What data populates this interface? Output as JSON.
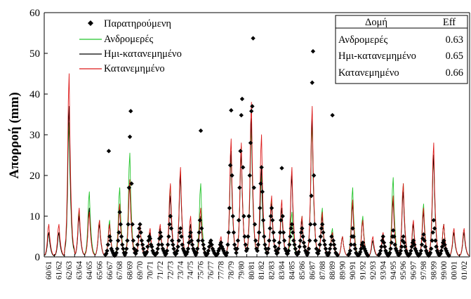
{
  "chart_data": {
    "type": "line",
    "title": "",
    "xlabel": "",
    "ylabel": "Απορροή (mm)",
    "ylim": [
      0,
      60
    ],
    "yticks": [
      0,
      10,
      20,
      30,
      40,
      50,
      60
    ],
    "grid": false,
    "legend_position": "top-left",
    "categories": [
      "60/61",
      "61/62",
      "62/63",
      "63/64",
      "64/65",
      "65/66",
      "66/67",
      "67/68",
      "68/69",
      "69/70",
      "70/71",
      "71/72",
      "72/73",
      "73/74",
      "74/75",
      "75/76",
      "76/77",
      "77/78",
      "78/79",
      "79/80",
      "80/81",
      "81/82",
      "82/83",
      "83/84",
      "84/85",
      "85/86",
      "86/87",
      "87/88",
      "88/89",
      "89/90",
      "90/91",
      "91/92",
      "92/93",
      "93/94",
      "94/95",
      "95/96",
      "96/97",
      "97/98",
      "98/99",
      "99/00",
      "00/01",
      "01/02"
    ],
    "series": [
      {
        "name": "Παρατηρούμενη",
        "marker": "diamond",
        "color": "#000000",
        "points_per_year": 12,
        "values_by_year": {
          "66/67": [
            0.5,
            0.8,
            1.5,
            3,
            26,
            5,
            4,
            2,
            1.5,
            1,
            0.5,
            0.3
          ],
          "67/68": [
            0.5,
            1,
            2,
            4,
            6,
            11,
            8,
            5,
            3,
            2,
            1,
            0.5
          ],
          "68/69": [
            1,
            2,
            4,
            8,
            17,
            29.5,
            35.8,
            18,
            8,
            4,
            2,
            1
          ],
          "69/70": [
            0.8,
            1.5,
            3,
            5,
            7,
            8,
            6,
            4,
            3,
            2,
            1,
            0.5
          ],
          "70/71": [
            0.8,
            1.2,
            2.5,
            4,
            5,
            4.5,
            3,
            2.5,
            1.5,
            1,
            0.7,
            0.5
          ],
          "71/72": [
            0.7,
            1,
            2,
            3,
            4.5,
            6,
            5,
            3,
            2,
            1.5,
            1,
            0.5
          ],
          "72/73": [
            0.8,
            1.5,
            3,
            5,
            8,
            10,
            7,
            4,
            3,
            2,
            1,
            0.6
          ],
          "73/74": [
            0.8,
            1.5,
            2.5,
            4,
            6,
            7,
            5,
            3,
            2,
            1.5,
            1,
            0.5
          ],
          "74/75": [
            0.7,
            1.2,
            2,
            3.5,
            5,
            6,
            4,
            3,
            2,
            1.5,
            1,
            0.5
          ],
          "75/76": [
            1,
            2,
            4,
            6,
            9,
            31,
            7,
            4,
            3,
            2,
            1,
            0.5
          ],
          "76/77": [
            0.5,
            0.8,
            1.5,
            2.5,
            3.5,
            4,
            3,
            2,
            1.5,
            1,
            0.7,
            0.4
          ],
          "77/78": [
            0.5,
            0.8,
            1.5,
            2,
            3,
            3.5,
            2.5,
            2,
            1.5,
            1,
            0.7,
            0.4
          ],
          "78/79": [
            1,
            3,
            6,
            12,
            22.5,
            36,
            20,
            10,
            6,
            3,
            2,
            1
          ],
          "79/80": [
            2,
            4,
            9,
            17,
            26,
            34.8,
            38.8,
            22,
            10,
            5,
            3,
            1.5
          ],
          "80/81": [
            2,
            5,
            10,
            20,
            28,
            35.8,
            37,
            53.7,
            17,
            8,
            4,
            2
          ],
          "81/82": [
            1.5,
            3,
            6,
            12,
            18,
            22,
            16,
            9,
            5,
            3,
            2,
            1
          ],
          "82/83": [
            1,
            2,
            4,
            7,
            10,
            12,
            9,
            6,
            4,
            2.5,
            1.5,
            0.8
          ],
          "83/84": [
            1,
            2,
            3.5,
            6,
            9,
            21.8,
            10,
            6,
            4,
            2,
            1.5,
            0.8
          ],
          "84/85": [
            0.8,
            1.5,
            3,
            5,
            7,
            8,
            6,
            4,
            3,
            2,
            1,
            0.6
          ],
          "85/86": [
            0.7,
            1.2,
            2.5,
            4,
            6,
            7,
            5,
            3.5,
            2.5,
            1.5,
            1,
            0.5
          ],
          "86/87": [
            1,
            2,
            4,
            8,
            15,
            42.8,
            50.5,
            20,
            8,
            4,
            2,
            1
          ],
          "87/88": [
            0.8,
            1.5,
            3,
            5,
            7,
            8,
            6,
            4,
            3,
            2,
            1,
            0.5
          ],
          "88/89": [
            0.5,
            1,
            2,
            3,
            5,
            34.8,
            4,
            3,
            2,
            1,
            0.7,
            0.4
          ],
          "90/91": [
            0.5,
            0.8,
            1.5,
            3,
            5,
            7,
            5,
            3,
            2,
            1,
            0.7,
            0.4
          ],
          "91/92": [
            0.4,
            0.7,
            1.2,
            2,
            3,
            3.5,
            2.5,
            2,
            1.5,
            1,
            0.6,
            0.3
          ],
          "93/94": [
            0.5,
            0.8,
            1.5,
            2.5,
            4,
            5,
            3.5,
            2.5,
            1.5,
            1,
            0.6,
            0.3
          ],
          "94/95": [
            0.6,
            1,
            2,
            3.5,
            5,
            6.5,
            5,
            3,
            2,
            1.5,
            1,
            0.5
          ],
          "95/96": [
            0.5,
            0.8,
            1.5,
            2.5,
            4,
            5,
            3.5,
            2.5,
            1.5,
            1,
            0.6,
            0.3
          ],
          "96/97": [
            0.5,
            0.8,
            1.5,
            2.5,
            3.5,
            4,
            3,
            2,
            1.5,
            1,
            0.6,
            0.3
          ],
          "97/98": [
            0.5,
            0.8,
            1.5,
            3,
            4.5,
            5.5,
            4,
            2.5,
            1.5,
            1,
            0.6,
            0.3
          ],
          "98/99": [
            0.6,
            1,
            2,
            4,
            6,
            9,
            7,
            4,
            2.5,
            1.5,
            1,
            0.5
          ],
          "99/00": [
            0.5,
            0.8,
            1.5,
            2.5,
            3.5,
            4,
            3,
            2,
            1.5,
            1,
            0.6,
            0.3
          ]
        }
      },
      {
        "name": "Ανδρομερές",
        "color": "#22c42a",
        "annual_peaks": [
          6,
          6,
          33,
          11,
          16,
          9,
          9,
          17,
          25.5,
          8,
          6,
          7,
          17.5,
          21,
          8,
          18,
          4,
          4,
          25,
          27,
          32,
          20,
          14,
          12,
          11,
          10,
          33,
          12,
          7,
          5,
          17,
          10,
          4,
          5,
          19.5,
          18,
          8,
          13,
          25,
          8,
          6,
          6
        ]
      },
      {
        "name": "Ημι-κατανεμημένο",
        "color": "#000000",
        "annual_peaks": [
          6,
          6,
          37,
          10,
          12,
          8,
          8,
          12,
          18,
          8,
          6,
          7,
          15,
          20,
          8,
          10,
          4,
          4,
          26,
          26,
          34,
          22,
          13,
          12,
          20,
          9,
          35,
          10,
          6,
          5,
          13,
          9,
          4,
          5,
          14,
          16,
          8,
          11,
          25,
          8,
          6,
          6
        ]
      },
      {
        "name": "Κατανεμημένο",
        "color": "#dd1a1a",
        "annual_peaks": [
          8,
          8,
          45,
          12,
          11,
          9,
          8,
          13,
          19,
          8,
          7,
          8,
          18,
          22,
          10,
          12,
          4,
          5,
          29,
          28,
          38,
          30,
          15,
          14,
          22,
          10,
          37,
          11,
          6,
          5,
          14,
          9,
          5,
          6,
          15,
          18,
          9,
          12,
          28,
          8,
          7,
          7
        ]
      }
    ],
    "efficiency_table": {
      "headers": [
        "Δομή",
        "Eff"
      ],
      "rows": [
        [
          "Ανδρομερές",
          "0.63"
        ],
        [
          "Ημι-κατανεμημένο",
          "0.65"
        ],
        [
          "Κατανεμημένο",
          "0.66"
        ]
      ]
    }
  }
}
